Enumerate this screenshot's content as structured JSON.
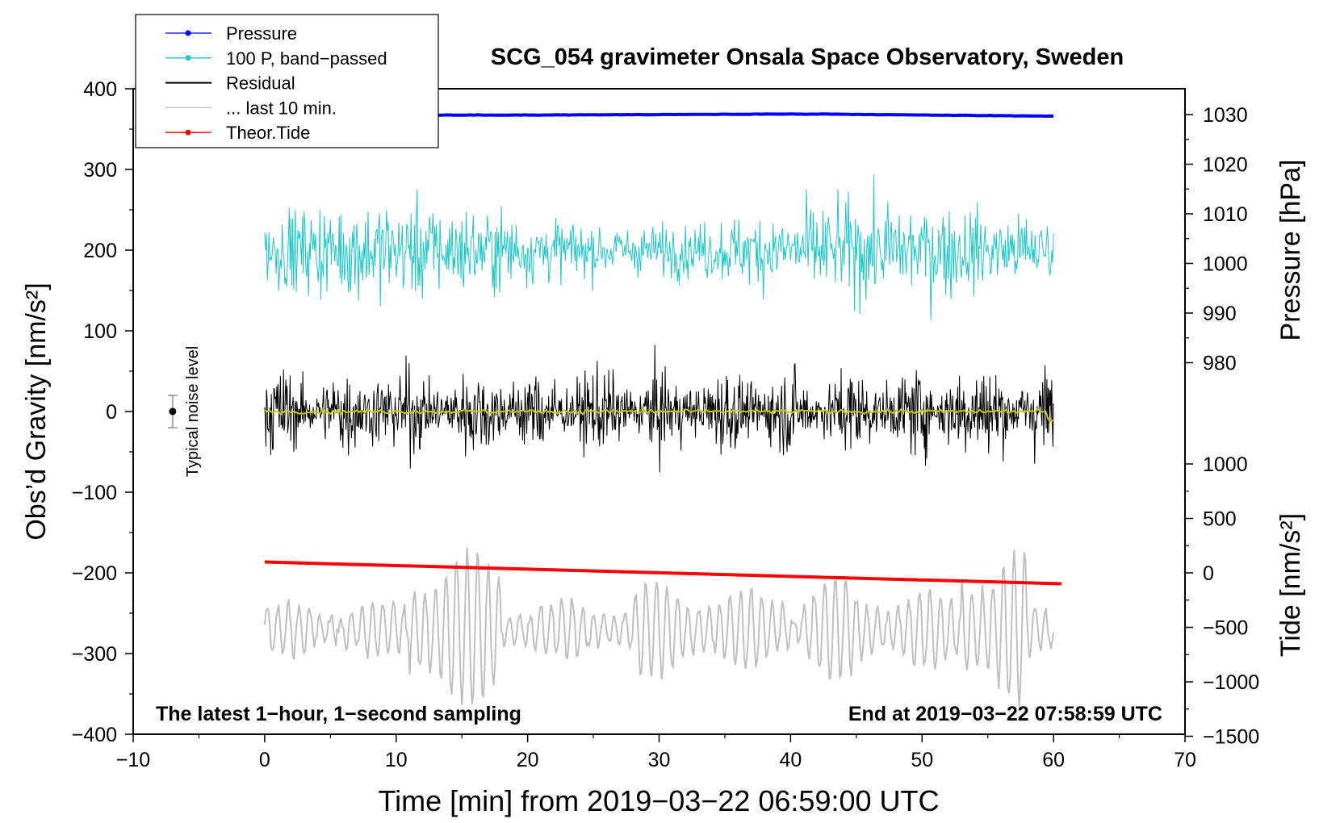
{
  "chart_data": {
    "type": "line",
    "title": "SCG_054 gravimeter Onsala Space Observatory, Sweden",
    "xlabel": "Time [min] from 2019−03−22 06:59:00 UTC",
    "ylabel_left": "Obs’d Gravity [nm/s²]",
    "ylabel_right_pressure": "Pressure [hPa]",
    "ylabel_right_tide": "Tide [nm/s²]",
    "xlim": [
      -10,
      70
    ],
    "ylim": [
      -400,
      400
    ],
    "x_ticks": [
      "−10",
      "0",
      "10",
      "20",
      "30",
      "40",
      "50",
      "60",
      "70"
    ],
    "y_ticks": [
      "400",
      "300",
      "200",
      "100",
      "0",
      "−100",
      "−200",
      "−300",
      "−400"
    ],
    "pressure_axis": {
      "ticks": [
        "1030",
        "1020",
        "1010",
        "1000",
        "990",
        "980"
      ],
      "range": [
        980,
        1030
      ]
    },
    "tide_axis": {
      "ticks": [
        "1000",
        "500",
        "0",
        "−500",
        "−1000",
        "−1500"
      ],
      "range": [
        -1500,
        1000
      ]
    },
    "legend": [
      {
        "name": "Pressure",
        "color": "#0000ff",
        "marker": true
      },
      {
        "name": "100 P, band−passed",
        "color": "#20c8c8",
        "marker": true
      },
      {
        "name": "Residual",
        "color": "#000000",
        "marker": false
      },
      {
        "name": "... last 10 min.",
        "color": "#c0c0c0",
        "marker": false
      },
      {
        "name": "Theor.Tide",
        "color": "#ff0000",
        "marker": true
      }
    ],
    "legend_position": "top-left",
    "annotations": {
      "sampling": "The latest 1−hour, 1−second sampling",
      "end_time": "End at 2019−03−22 07:58:59 UTC",
      "noise": "Typical noise level"
    },
    "series": [
      {
        "name": "Pressure",
        "color": "#0000ff",
        "axis": "pressure",
        "x": [
          0,
          10,
          20,
          30,
          40,
          43,
          50,
          60
        ],
        "values": [
          1029.8,
          1029.9,
          1029.9,
          1030.0,
          1030.1,
          1030.1,
          1029.9,
          1029.7
        ]
      },
      {
        "name": "100 P, band−passed",
        "color": "#20c8c8",
        "axis": "gravity",
        "center": 200,
        "amplitude": 35
      },
      {
        "name": "Residual",
        "color": "#000000",
        "axis": "gravity",
        "center": 0,
        "amplitude": 70
      },
      {
        "name": "Residual (smoothed)",
        "color": "#c8c800",
        "axis": "gravity",
        "center": 0,
        "amplitude": 3
      },
      {
        "name": "... last 10 min.",
        "color": "#c0c0c0",
        "axis": "gravity",
        "center": -270,
        "amplitude": 50
      },
      {
        "name": "Theor.Tide",
        "color": "#ff0000",
        "axis": "tide",
        "x": [
          0,
          60
        ],
        "values": [
          100,
          -100
        ]
      }
    ],
    "noise_bar": {
      "x": -7,
      "value": 0,
      "error": 20
    },
    "colors": {
      "smoothed": "#c8c800",
      "noise": "#000000"
    }
  }
}
